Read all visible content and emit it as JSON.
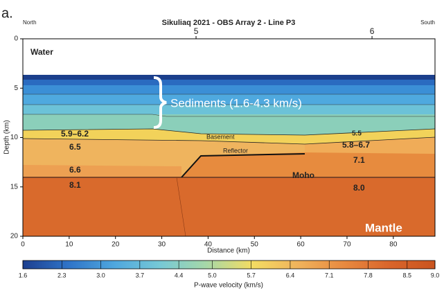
{
  "chart_data": {
    "type": "section",
    "panel_label": "a.",
    "title": "Sikuliaq 2021 - OBS Array 2 - Line P3",
    "left_label": "North",
    "right_label": "South",
    "stations": {
      "x": [
        37.4,
        75.4
      ],
      "labels": [
        "5",
        "6"
      ]
    },
    "xlabel": "Distance (km)",
    "ylabel": "Depth (km)",
    "xlim": [
      0,
      89
    ],
    "xticks": [
      0,
      10,
      20,
      30,
      40,
      50,
      60,
      70,
      80
    ],
    "ylim": [
      0,
      20
    ],
    "yticks": [
      0,
      5,
      10,
      15,
      20
    ],
    "y_inverted": true,
    "annotations": {
      "water": "Water",
      "sediments": "Sediments (1.6-4.3 km/s)",
      "upper_left": "5.9–6.2",
      "left_mid": "6.5",
      "left_low": "6.6",
      "mantle_left": "8.1",
      "basement": "Basement",
      "reflector": "Reflector",
      "upper_right": "5.5",
      "right_mid": "5.8–6.7",
      "right_low": "7.1",
      "moho": "Moho",
      "mantle_right": "8.0",
      "mantle": "Mantle"
    },
    "colorbar": {
      "label": "P-wave velocity (km/s)",
      "lim": [
        1.6,
        9.0
      ],
      "colors": [
        "#1d3f8f",
        "#2f74c8",
        "#4fa7de",
        "#77c9d6",
        "#a6d8a8",
        "#f3dc63",
        "#f0b35c",
        "#e88a40",
        "#d9652b",
        "#c9541f"
      ],
      "ticks": [
        1.6,
        2.3,
        {
          "value": 3.0,
          "label": "3.0"
        },
        3.7,
        4.4,
        {
          "value": 5.0,
          "label": "5.0"
        },
        5.7,
        6.4,
        7.1,
        7.8,
        8.5,
        {
          "value": 9.0,
          "label": "9.0"
        }
      ]
    }
  }
}
